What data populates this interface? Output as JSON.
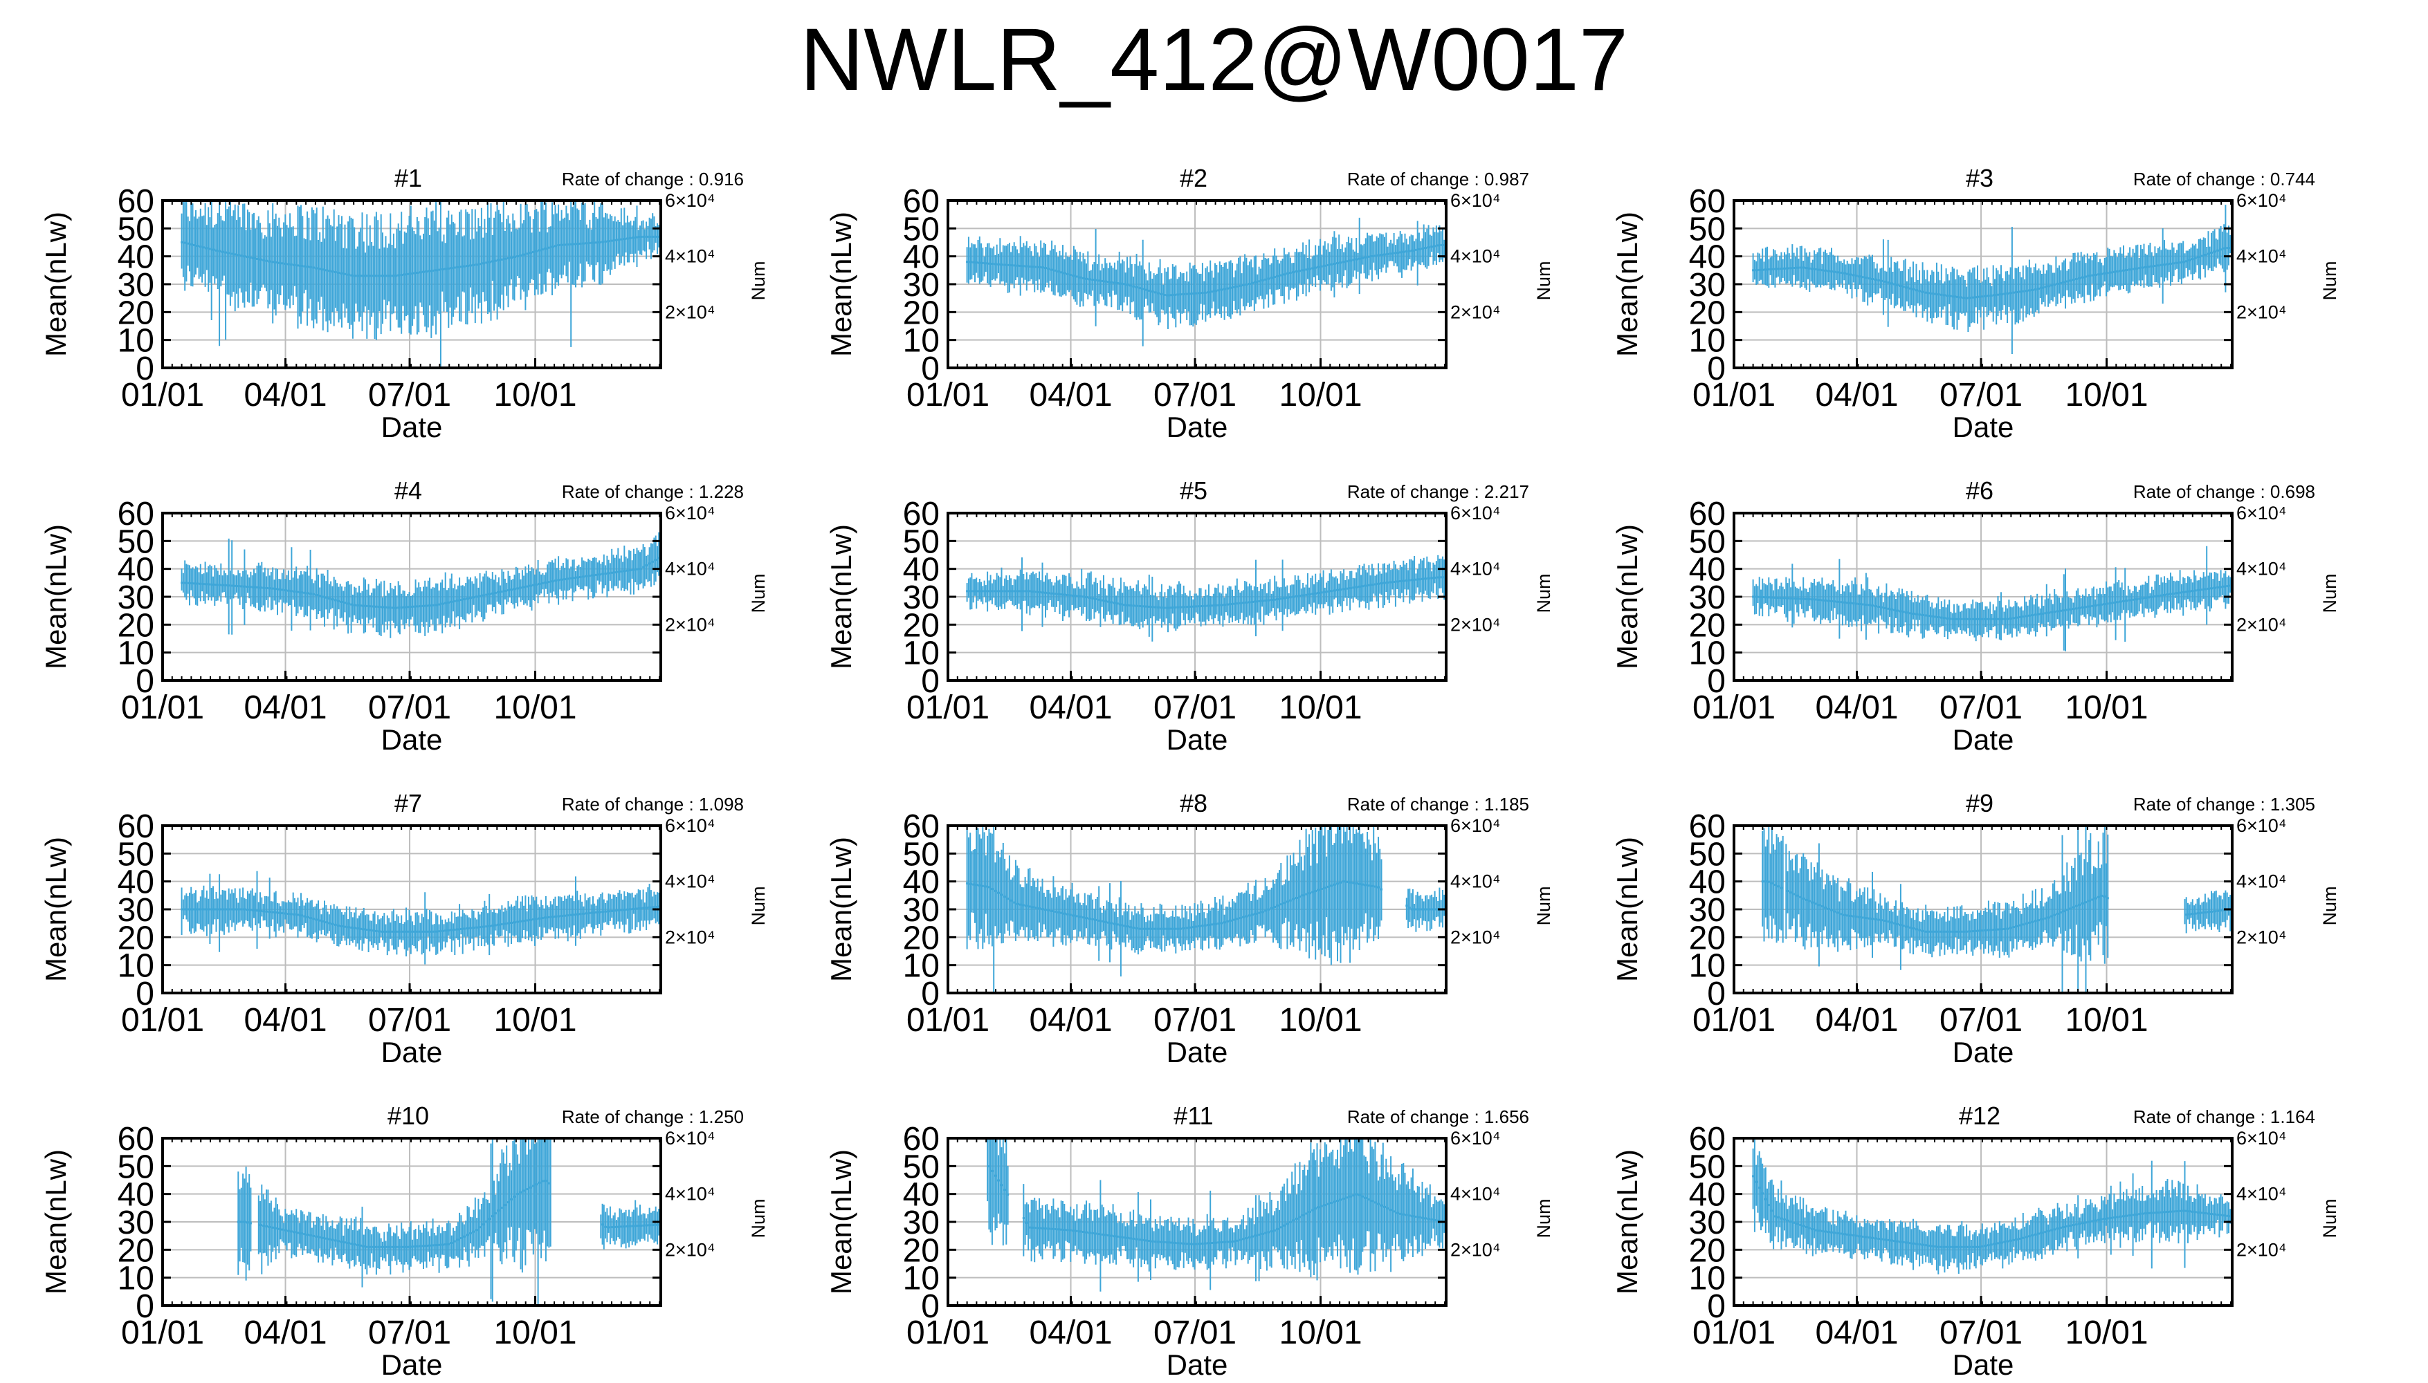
{
  "title": "NWLR_412@W0017",
  "chart_data": {
    "type": "errorbar",
    "layout": "4x3 grid of panels",
    "xlabel": "Date",
    "ylabel": "Mean(nLw)",
    "y2label": "Num",
    "xticks": [
      "01/01",
      "04/01",
      "07/01",
      "10/01"
    ],
    "yticks": [
      0,
      10,
      20,
      30,
      40,
      50,
      60
    ],
    "ylim": [
      0,
      60
    ],
    "y2ticks": [
      "2×10⁴",
      "4×10⁴",
      "6×10⁴"
    ],
    "y2lim": [
      0,
      60000
    ],
    "grid": true,
    "color": "#3ea6d8",
    "rate_label": "Rate of change : ",
    "panels": [
      {
        "name": "#1",
        "rate": "0.916",
        "trend": [
          [
            15,
            45
          ],
          [
            40,
            42
          ],
          [
            80,
            38
          ],
          [
            110,
            36
          ],
          [
            140,
            33
          ],
          [
            170,
            33
          ],
          [
            200,
            35
          ],
          [
            230,
            37
          ],
          [
            260,
            40
          ],
          [
            290,
            44
          ],
          [
            320,
            45
          ],
          [
            350,
            47
          ]
        ],
        "err": [
          [
            15,
            12
          ],
          [
            80,
            15
          ],
          [
            140,
            17
          ],
          [
            200,
            16
          ],
          [
            260,
            14
          ],
          [
            320,
            11
          ],
          [
            350,
            5
          ]
        ]
      },
      {
        "name": "#2",
        "rate": "0.987",
        "trend": [
          [
            15,
            38
          ],
          [
            40,
            37
          ],
          [
            70,
            36
          ],
          [
            100,
            32
          ],
          [
            130,
            30
          ],
          [
            160,
            26
          ],
          [
            190,
            27
          ],
          [
            220,
            30
          ],
          [
            250,
            34
          ],
          [
            280,
            37
          ],
          [
            310,
            40
          ],
          [
            340,
            42
          ],
          [
            360,
            44
          ]
        ],
        "err": [
          [
            15,
            6
          ],
          [
            100,
            7
          ],
          [
            160,
            8
          ],
          [
            250,
            7
          ],
          [
            360,
            5
          ]
        ]
      },
      {
        "name": "#3",
        "rate": "0.744",
        "trend": [
          [
            15,
            35
          ],
          [
            50,
            36
          ],
          [
            80,
            34
          ],
          [
            110,
            31
          ],
          [
            140,
            27
          ],
          [
            170,
            25
          ],
          [
            190,
            26
          ],
          [
            220,
            28
          ],
          [
            260,
            33
          ],
          [
            300,
            36
          ],
          [
            330,
            38
          ],
          [
            360,
            43
          ]
        ],
        "err": [
          [
            15,
            5
          ],
          [
            110,
            6
          ],
          [
            170,
            8
          ],
          [
            260,
            6
          ],
          [
            360,
            5
          ]
        ]
      },
      {
        "name": "#4",
        "rate": "1.228",
        "trend": [
          [
            15,
            35
          ],
          [
            50,
            34
          ],
          [
            80,
            33
          ],
          [
            110,
            31
          ],
          [
            140,
            27
          ],
          [
            170,
            26
          ],
          [
            200,
            27
          ],
          [
            230,
            30
          ],
          [
            260,
            33
          ],
          [
            290,
            36
          ],
          [
            320,
            38
          ],
          [
            350,
            40
          ],
          [
            364,
            44
          ]
        ],
        "err": [
          [
            15,
            5
          ],
          [
            140,
            7
          ],
          [
            200,
            7
          ],
          [
            290,
            5
          ],
          [
            364,
            6
          ]
        ]
      },
      {
        "name": "#5",
        "rate": "2.217",
        "trend": [
          [
            15,
            32
          ],
          [
            60,
            32
          ],
          [
            100,
            30
          ],
          [
            130,
            27
          ],
          [
            160,
            26
          ],
          [
            200,
            27
          ],
          [
            240,
            29
          ],
          [
            280,
            32
          ],
          [
            320,
            35
          ],
          [
            360,
            37
          ]
        ],
        "err": [
          [
            15,
            5
          ],
          [
            100,
            6
          ],
          [
            160,
            6
          ],
          [
            240,
            5
          ],
          [
            360,
            6
          ]
        ]
      },
      {
        "name": "#6",
        "rate": "0.698",
        "trend": [
          [
            15,
            30
          ],
          [
            60,
            29
          ],
          [
            100,
            27
          ],
          [
            130,
            24
          ],
          [
            160,
            22
          ],
          [
            200,
            22
          ],
          [
            240,
            25
          ],
          [
            280,
            28
          ],
          [
            320,
            31
          ],
          [
            364,
            34
          ]
        ],
        "err": [
          [
            15,
            5
          ],
          [
            100,
            6
          ],
          [
            160,
            5
          ],
          [
            280,
            5
          ],
          [
            364,
            5
          ]
        ]
      },
      {
        "name": "#7",
        "rate": "1.098",
        "trend": [
          [
            15,
            30
          ],
          [
            60,
            30
          ],
          [
            100,
            28
          ],
          [
            130,
            24
          ],
          [
            160,
            22
          ],
          [
            200,
            22
          ],
          [
            240,
            24
          ],
          [
            280,
            27
          ],
          [
            320,
            29
          ],
          [
            364,
            31
          ]
        ],
        "err": [
          [
            15,
            6
          ],
          [
            100,
            5
          ],
          [
            160,
            5
          ],
          [
            280,
            6
          ],
          [
            364,
            5
          ]
        ]
      },
      {
        "name": "#8",
        "rate": "1.185",
        "trend": [
          [
            5,
            40
          ],
          [
            30,
            38
          ],
          [
            50,
            32
          ],
          [
            80,
            29
          ],
          [
            110,
            26
          ],
          [
            140,
            23
          ],
          [
            170,
            23
          ],
          [
            200,
            25
          ],
          [
            230,
            29
          ],
          [
            260,
            35
          ],
          [
            290,
            40
          ],
          [
            315,
            38
          ],
          [
            340,
            30
          ],
          [
            364,
            30
          ]
        ],
        "err": [
          [
            5,
            20
          ],
          [
            50,
            12
          ],
          [
            110,
            6
          ],
          [
            170,
            6
          ],
          [
            230,
            8
          ],
          [
            260,
            15
          ],
          [
            290,
            22
          ],
          [
            340,
            5
          ],
          [
            364,
            5
          ]
        ],
        "gaps": [
          [
            318,
            335
          ]
        ]
      },
      {
        "name": "#9",
        "rate": "1.305",
        "trend": [
          [
            25,
            40
          ],
          [
            50,
            34
          ],
          [
            80,
            28
          ],
          [
            110,
            26
          ],
          [
            140,
            22
          ],
          [
            170,
            22
          ],
          [
            200,
            23
          ],
          [
            230,
            27
          ],
          [
            270,
            35
          ],
          [
            290,
            30
          ],
          [
            330,
            28
          ],
          [
            364,
            30
          ]
        ],
        "err": [
          [
            25,
            15
          ],
          [
            50,
            12
          ],
          [
            110,
            6
          ],
          [
            170,
            6
          ],
          [
            230,
            8
          ],
          [
            270,
            18
          ],
          [
            330,
            5
          ],
          [
            364,
            5
          ]
        ],
        "gaps": [
          [
            0,
            20
          ],
          [
            36,
            38
          ],
          [
            275,
            330
          ]
        ]
      },
      {
        "name": "#10",
        "rate": "1.250",
        "trend": [
          [
            60,
            30
          ],
          [
            90,
            27
          ],
          [
            120,
            24
          ],
          [
            150,
            21
          ],
          [
            180,
            21
          ],
          [
            210,
            22
          ],
          [
            230,
            27
          ],
          [
            260,
            40
          ],
          [
            280,
            45
          ],
          [
            325,
            28
          ],
          [
            364,
            29
          ]
        ],
        "err": [
          [
            60,
            15
          ],
          [
            90,
            6
          ],
          [
            150,
            6
          ],
          [
            210,
            6
          ],
          [
            240,
            10
          ],
          [
            260,
            20
          ],
          [
            280,
            20
          ],
          [
            325,
            5
          ],
          [
            364,
            5
          ]
        ],
        "gaps": [
          [
            0,
            55
          ],
          [
            65,
            70
          ],
          [
            285,
            320
          ]
        ]
      },
      {
        "name": "#11",
        "rate": "1.656",
        "trend": [
          [
            30,
            50
          ],
          [
            60,
            28
          ],
          [
            90,
            27
          ],
          [
            120,
            25
          ],
          [
            150,
            23
          ],
          [
            180,
            22
          ],
          [
            210,
            23
          ],
          [
            240,
            27
          ],
          [
            270,
            35
          ],
          [
            300,
            40
          ],
          [
            330,
            33
          ],
          [
            364,
            30
          ]
        ],
        "err": [
          [
            30,
            20
          ],
          [
            60,
            8
          ],
          [
            150,
            7
          ],
          [
            210,
            6
          ],
          [
            240,
            10
          ],
          [
            270,
            18
          ],
          [
            300,
            20
          ],
          [
            364,
            6
          ]
        ],
        "gaps": [
          [
            0,
            28
          ],
          [
            45,
            55
          ]
        ]
      },
      {
        "name": "#12",
        "rate": "1.164",
        "trend": [
          [
            10,
            50
          ],
          [
            30,
            32
          ],
          [
            60,
            27
          ],
          [
            90,
            25
          ],
          [
            120,
            23
          ],
          [
            150,
            21
          ],
          [
            180,
            21
          ],
          [
            210,
            24
          ],
          [
            240,
            28
          ],
          [
            270,
            31
          ],
          [
            300,
            33
          ],
          [
            330,
            34
          ],
          [
            364,
            32
          ]
        ],
        "err": [
          [
            10,
            15
          ],
          [
            30,
            8
          ],
          [
            90,
            5
          ],
          [
            150,
            6
          ],
          [
            210,
            6
          ],
          [
            270,
            6
          ],
          [
            330,
            8
          ],
          [
            364,
            4
          ]
        ],
        "gaps": [
          [
            0,
            8
          ]
        ]
      }
    ]
  }
}
